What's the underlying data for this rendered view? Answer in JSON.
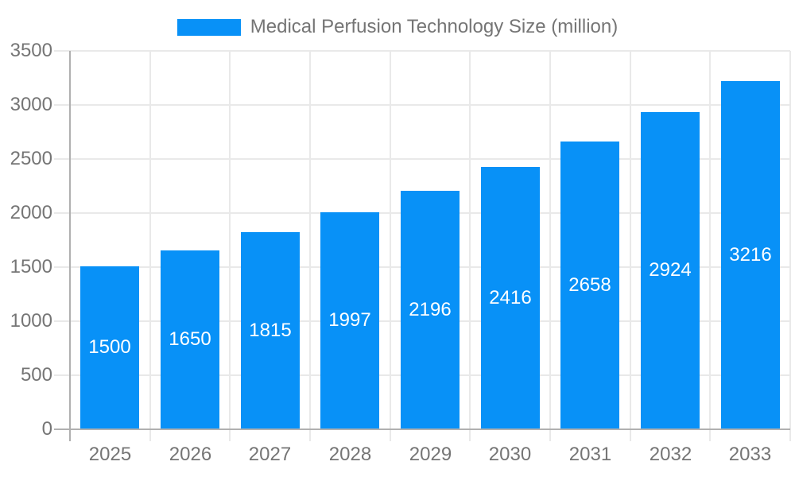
{
  "chart_data": {
    "type": "bar",
    "title": "Medical Perfusion Technology Size (million)",
    "categories": [
      "2025",
      "2026",
      "2027",
      "2028",
      "2029",
      "2030",
      "2031",
      "2032",
      "2033"
    ],
    "values": [
      1500,
      1650,
      1815,
      1997,
      2196,
      2416,
      2658,
      2924,
      3216
    ],
    "xlabel": "",
    "ylabel": "",
    "ylim": [
      0,
      3500
    ],
    "yticks": [
      0,
      500,
      1000,
      1500,
      2000,
      2500,
      3000,
      3500
    ],
    "grid": true,
    "legend_position": "top-center",
    "colors": {
      "bar": "#0891f7",
      "grid_line": "#e9e9e9",
      "axis_line": "#b0b0b0",
      "text": "#757575",
      "value_label": "#ffffff",
      "background": "#ffffff"
    }
  }
}
